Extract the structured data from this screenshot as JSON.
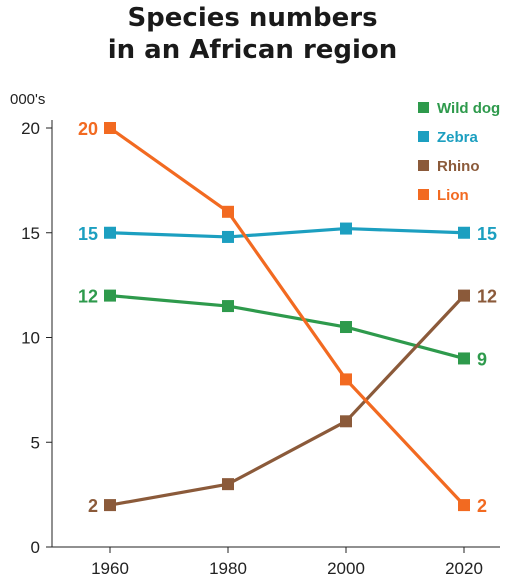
{
  "chart_data": {
    "type": "line",
    "title_lines": [
      "Species numbers",
      "in an African region"
    ],
    "ylabel": "000's",
    "xlabel": "",
    "categories": [
      "1960",
      "1980",
      "2000",
      "2020"
    ],
    "ylim": [
      0,
      20
    ],
    "yticks": [
      0,
      5,
      10,
      15,
      20
    ],
    "grid": false,
    "legend_position": "top-right",
    "series": [
      {
        "name": "Wild dog",
        "values": [
          12,
          11.5,
          10.5,
          9
        ],
        "color": "#2e9a4c",
        "labels": {
          "start": "12",
          "end": "9"
        }
      },
      {
        "name": "Zebra",
        "values": [
          15,
          14.8,
          15.2,
          15
        ],
        "color": "#1c9fc0",
        "labels": {
          "start": "15",
          "end": "15"
        }
      },
      {
        "name": "Rhino",
        "values": [
          2,
          3,
          6,
          12
        ],
        "color": "#8b5a3a",
        "labels": {
          "start": "2",
          "end": "12"
        }
      },
      {
        "name": "Lion",
        "values": [
          20,
          16,
          8,
          2
        ],
        "color": "#f26a21",
        "labels": {
          "start": "20",
          "end": "2"
        }
      }
    ]
  }
}
